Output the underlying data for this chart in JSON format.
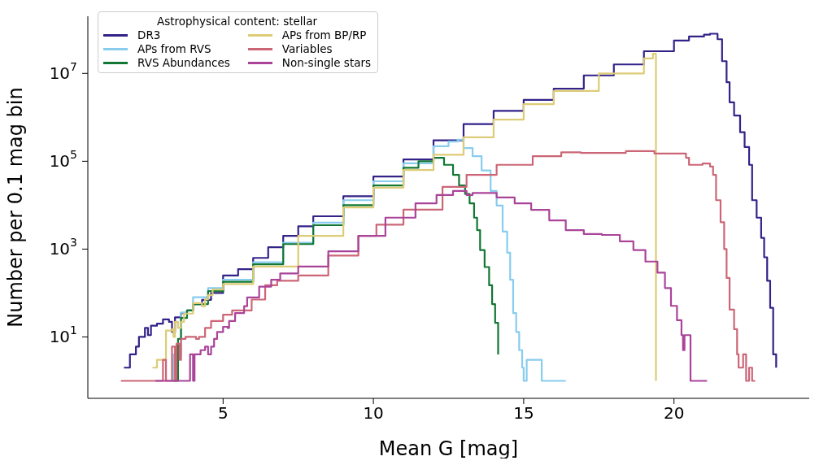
{
  "chart_data": {
    "type": "step",
    "xlabel": "Mean G [mag]",
    "ylabel": "Number per 0.1 mag bin",
    "legend_title": "Astrophysical content: stellar",
    "legend": "top left",
    "log": "y",
    "xlim": [
      0.5,
      24.5
    ],
    "xticks": [
      5,
      10,
      15,
      20
    ],
    "ylim": [
      0.4,
      200000000
    ],
    "yticks": [
      {
        "value": 10,
        "label": "10$^{1}$"
      },
      {
        "value": 1000,
        "label": "10$^{3}$"
      },
      {
        "value": 100000,
        "label": "10$^{5}$"
      },
      {
        "value": 10000000,
        "label": "10$^{7}$"
      }
    ],
    "series": [
      {
        "name": "DR3",
        "color": "#332288",
        "x": [
          1.7,
          1.9,
          2.1,
          2.2,
          2.4,
          2.5,
          2.6,
          2.8,
          3.0,
          3.2,
          3.3,
          3.4,
          3.6,
          3.8,
          4.0,
          4.3,
          4.6,
          5.0,
          5.5,
          6.0,
          6.5,
          7.0,
          7.5,
          8.0,
          9.0,
          10.0,
          11.0,
          12.0,
          13.0,
          14.0,
          15.0,
          16.0,
          17.0,
          18.0,
          19.0,
          20.0,
          20.5,
          21.0,
          21.2,
          21.45,
          21.6,
          21.75,
          21.85,
          22.0,
          22.2,
          22.35,
          22.5,
          22.6,
          22.75,
          22.9,
          23.0,
          23.1,
          23.2,
          23.3,
          23.4
        ],
        "values": [
          2,
          4,
          6,
          10,
          16,
          11,
          18,
          20,
          25,
          22,
          13,
          28,
          35,
          40,
          56,
          70,
          100,
          250,
          350,
          630,
          1100,
          2000,
          3300,
          5600,
          16000,
          45000,
          110000,
          300000,
          700000,
          1400000,
          2500000,
          4500000,
          9000000,
          16000000,
          32000000,
          56000000,
          69000000,
          76000000,
          80000000,
          60000000,
          19000000,
          6300000,
          2200000,
          1100000,
          460000,
          210000,
          83000,
          13000,
          5200,
          1800,
          650,
          190,
          46,
          4,
          2
        ]
      },
      {
        "name": "APs from RVS",
        "color": "#88ccee",
        "x": [
          3.3,
          3.35,
          3.6,
          3.8,
          4.0,
          4.5,
          5.0,
          6.0,
          7.0,
          8.0,
          9.0,
          10.0,
          11.0,
          12.0,
          12.5,
          12.8,
          13.0,
          13.3,
          13.6,
          13.9,
          14.1,
          14.3,
          14.45,
          14.55,
          14.65,
          14.75,
          14.85,
          14.95,
          15.0,
          15.1,
          15.6,
          16.4
        ],
        "values": [
          1,
          4,
          36,
          40,
          80,
          130,
          200,
          500,
          1400,
          4000,
          13000,
          35000,
          90000,
          220000,
          280000,
          310000,
          200000,
          130000,
          62000,
          21000,
          9800,
          2500,
          830,
          200,
          35,
          13,
          5,
          2,
          1,
          3,
          1,
          1
        ]
      },
      {
        "name": "RVS Abundances",
        "color": "#117733",
        "x": [
          3.35,
          3.5,
          3.6,
          3.8,
          4.0,
          4.5,
          5.0,
          6.0,
          7.0,
          8.0,
          9.0,
          10.0,
          11.0,
          11.5,
          12.0,
          12.35,
          12.65,
          12.85,
          13.05,
          13.2,
          13.35,
          13.45,
          13.55,
          13.7,
          13.85,
          13.95,
          14.05,
          14.15
        ],
        "values": [
          1,
          9,
          27,
          40,
          56,
          110,
          180,
          450,
          1300,
          3500,
          10000,
          28000,
          71000,
          100000,
          120000,
          83000,
          49000,
          28000,
          18000,
          11000,
          5200,
          2700,
          950,
          390,
          150,
          56,
          21,
          4
        ]
      },
      {
        "name": "APs from BP/RP",
        "color": "#ddcc77",
        "x": [
          2.65,
          2.8,
          3.1,
          3.3,
          3.35,
          3.4,
          3.5,
          3.6,
          3.7,
          4.0,
          4.3,
          4.4,
          4.5,
          4.65,
          5.0,
          6.0,
          7.5,
          9.0,
          10.0,
          11.0,
          12.0,
          13.0,
          14.0,
          15.0,
          16.0,
          17.5,
          19.0,
          19.3,
          19.4
        ],
        "values": [
          2,
          3,
          14,
          15,
          10,
          22,
          16,
          22,
          34,
          59,
          50,
          72,
          89,
          120,
          160,
          400,
          2000,
          8900,
          25000,
          63000,
          140000,
          350000,
          890000,
          2000000,
          4000000,
          10000000,
          22000000,
          28000000,
          1
        ]
      },
      {
        "name": "Variables",
        "color": "#cc6677",
        "x": [
          1.6,
          3.0,
          3.1,
          3.3,
          3.4,
          3.45,
          3.55,
          3.6,
          3.75,
          4.1,
          4.2,
          4.4,
          4.6,
          5.0,
          5.3,
          5.95,
          6.4,
          6.8,
          7.5,
          8.5,
          9.5,
          10.1,
          11.0,
          12.3,
          13.1,
          14.1,
          15.3,
          16.25,
          16.9,
          18.4,
          19.35,
          20.4,
          20.5,
          20.95,
          21.2,
          21.3,
          21.4,
          21.55,
          21.67,
          21.75,
          21.85,
          22.0,
          22.1,
          22.15,
          22.3,
          22.4,
          22.5,
          22.6,
          22.7
        ],
        "values": [
          1,
          3,
          1,
          6,
          1,
          7,
          3,
          9,
          10,
          9,
          10,
          16,
          23,
          32,
          40,
          71,
          150,
          190,
          250,
          710,
          2000,
          3600,
          7900,
          26000,
          49000,
          83000,
          130000,
          160000,
          155000,
          170000,
          150000,
          120000,
          83000,
          89000,
          76000,
          49000,
          13000,
          4100,
          1000,
          220,
          42,
          15,
          4,
          2,
          4,
          1,
          2,
          1,
          1
        ]
      },
      {
        "name": "Non-single stars",
        "color": "#aa4499",
        "x": [
          2.75,
          3.9,
          4.0,
          4.05,
          4.25,
          4.4,
          4.5,
          4.6,
          4.7,
          4.8,
          5.0,
          5.15,
          5.2,
          5.4,
          5.7,
          5.8,
          6.2,
          6.6,
          6.9,
          7.5,
          8.5,
          9.5,
          10.4,
          11.4,
          12.1,
          12.65,
          13.1,
          13.3,
          14.1,
          14.7,
          15.25,
          15.85,
          16.4,
          17.0,
          17.6,
          18.2,
          18.65,
          19.05,
          19.45,
          19.7,
          19.9,
          20.1,
          20.25,
          20.3,
          20.35,
          20.55,
          21.1
        ],
        "values": [
          1,
          4,
          1,
          4,
          5,
          6,
          4,
          6,
          9,
          13,
          17,
          16,
          23,
          35,
          50,
          79,
          140,
          200,
          280,
          400,
          890,
          2000,
          5200,
          11000,
          17000,
          21000,
          17000,
          19000,
          15000,
          11000,
          7800,
          4500,
          2700,
          2200,
          2100,
          1500,
          950,
          520,
          290,
          130,
          51,
          24,
          11,
          5,
          11,
          1,
          1
        ]
      }
    ]
  }
}
